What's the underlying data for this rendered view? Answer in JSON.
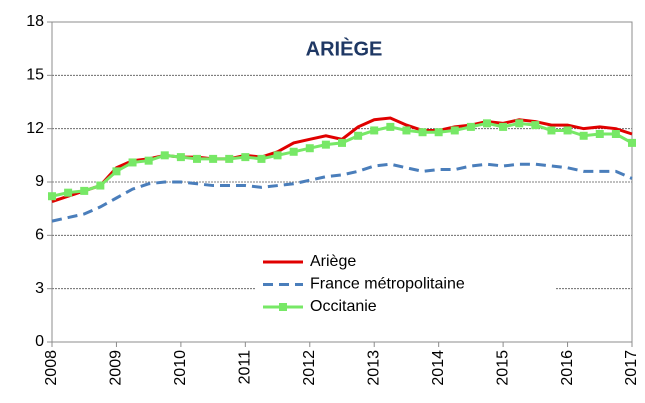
{
  "chart_data": {
    "type": "line",
    "title": "ARIÈGE",
    "x": [
      2008,
      2008.25,
      2008.5,
      2008.75,
      2009,
      2009.25,
      2009.5,
      2009.75,
      2010,
      2010.25,
      2010.5,
      2010.75,
      2011,
      2011.25,
      2011.5,
      2011.75,
      2012,
      2012.25,
      2012.5,
      2012.75,
      2013,
      2013.25,
      2013.5,
      2013.75,
      2014,
      2014.25,
      2014.5,
      2014.75,
      2015,
      2015.25,
      2015.5,
      2015.75,
      2016,
      2016.25,
      2016.5,
      2016.75,
      2017
    ],
    "series": [
      {
        "name": "Ariège",
        "color": "#e00000",
        "dash": "solid",
        "marker": "none",
        "values": [
          7.9,
          8.2,
          8.5,
          8.8,
          9.8,
          10.2,
          10.3,
          10.5,
          10.4,
          10.4,
          10.3,
          10.3,
          10.5,
          10.4,
          10.7,
          11.2,
          11.4,
          11.6,
          11.4,
          12.1,
          12.5,
          12.6,
          12.2,
          11.9,
          11.9,
          12.1,
          12.2,
          12.4,
          12.3,
          12.5,
          12.4,
          12.2,
          12.2,
          12.0,
          12.1,
          12.0,
          11.7
        ]
      },
      {
        "name": "France métropolitaine",
        "color": "#4a7ebb",
        "dash": "dashed",
        "marker": "none",
        "values": [
          6.8,
          7.0,
          7.2,
          7.6,
          8.1,
          8.6,
          8.9,
          9.0,
          9.0,
          8.9,
          8.8,
          8.8,
          8.8,
          8.7,
          8.8,
          8.9,
          9.1,
          9.3,
          9.4,
          9.6,
          9.9,
          10.0,
          9.8,
          9.6,
          9.7,
          9.7,
          9.9,
          10.0,
          9.9,
          10.0,
          10.0,
          9.9,
          9.8,
          9.6,
          9.6,
          9.6,
          9.2
        ]
      },
      {
        "name": "Occitanie",
        "color": "#77e866",
        "dash": "solid",
        "marker": "square",
        "values": [
          8.2,
          8.4,
          8.5,
          8.8,
          9.6,
          10.1,
          10.2,
          10.5,
          10.4,
          10.3,
          10.3,
          10.3,
          10.4,
          10.3,
          10.5,
          10.7,
          10.9,
          11.1,
          11.2,
          11.6,
          11.9,
          12.1,
          11.9,
          11.8,
          11.8,
          11.9,
          12.1,
          12.3,
          12.1,
          12.3,
          12.2,
          11.9,
          11.9,
          11.6,
          11.7,
          11.7,
          11.2
        ]
      }
    ],
    "xlim": [
      2008,
      2017
    ],
    "xticks": [
      2008,
      2009,
      2010,
      2011,
      2012,
      2013,
      2014,
      2015,
      2016,
      2017
    ],
    "ylim": [
      0,
      18
    ],
    "yticks": [
      0,
      3,
      6,
      9,
      12,
      15,
      18
    ],
    "grid": true,
    "legend": "bottom-right"
  }
}
